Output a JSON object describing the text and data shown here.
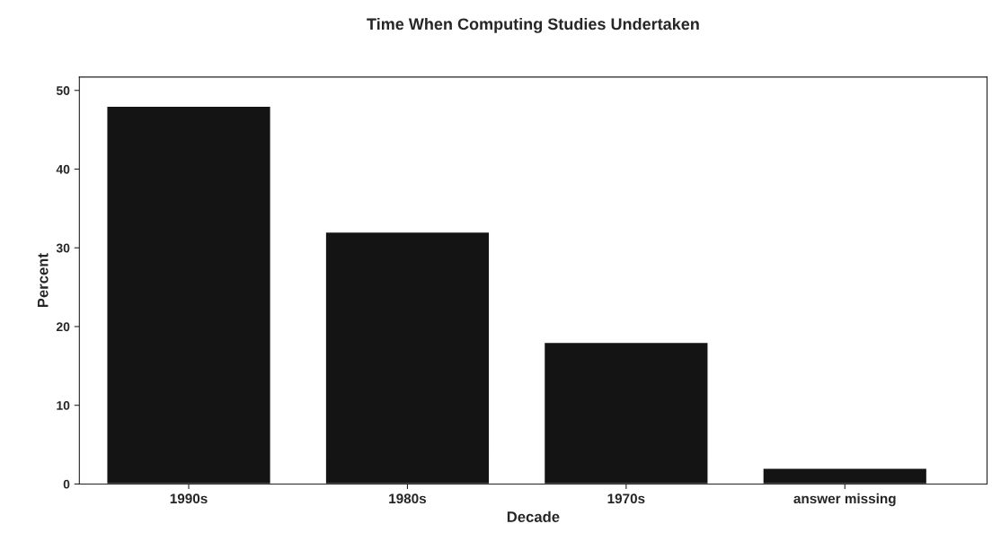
{
  "chart_data": {
    "type": "bar",
    "title": "Time When Computing Studies Undertaken",
    "xlabel": "Decade",
    "ylabel": "Percent",
    "categories": [
      "1990s",
      "1980s",
      "1970s",
      "answer missing"
    ],
    "values": [
      48,
      32,
      18,
      2
    ],
    "color": "#141414",
    "ylim": [
      0,
      51.7
    ],
    "yticks": [
      0,
      10,
      20,
      30,
      40,
      50
    ],
    "grid": false,
    "legend": false
  }
}
